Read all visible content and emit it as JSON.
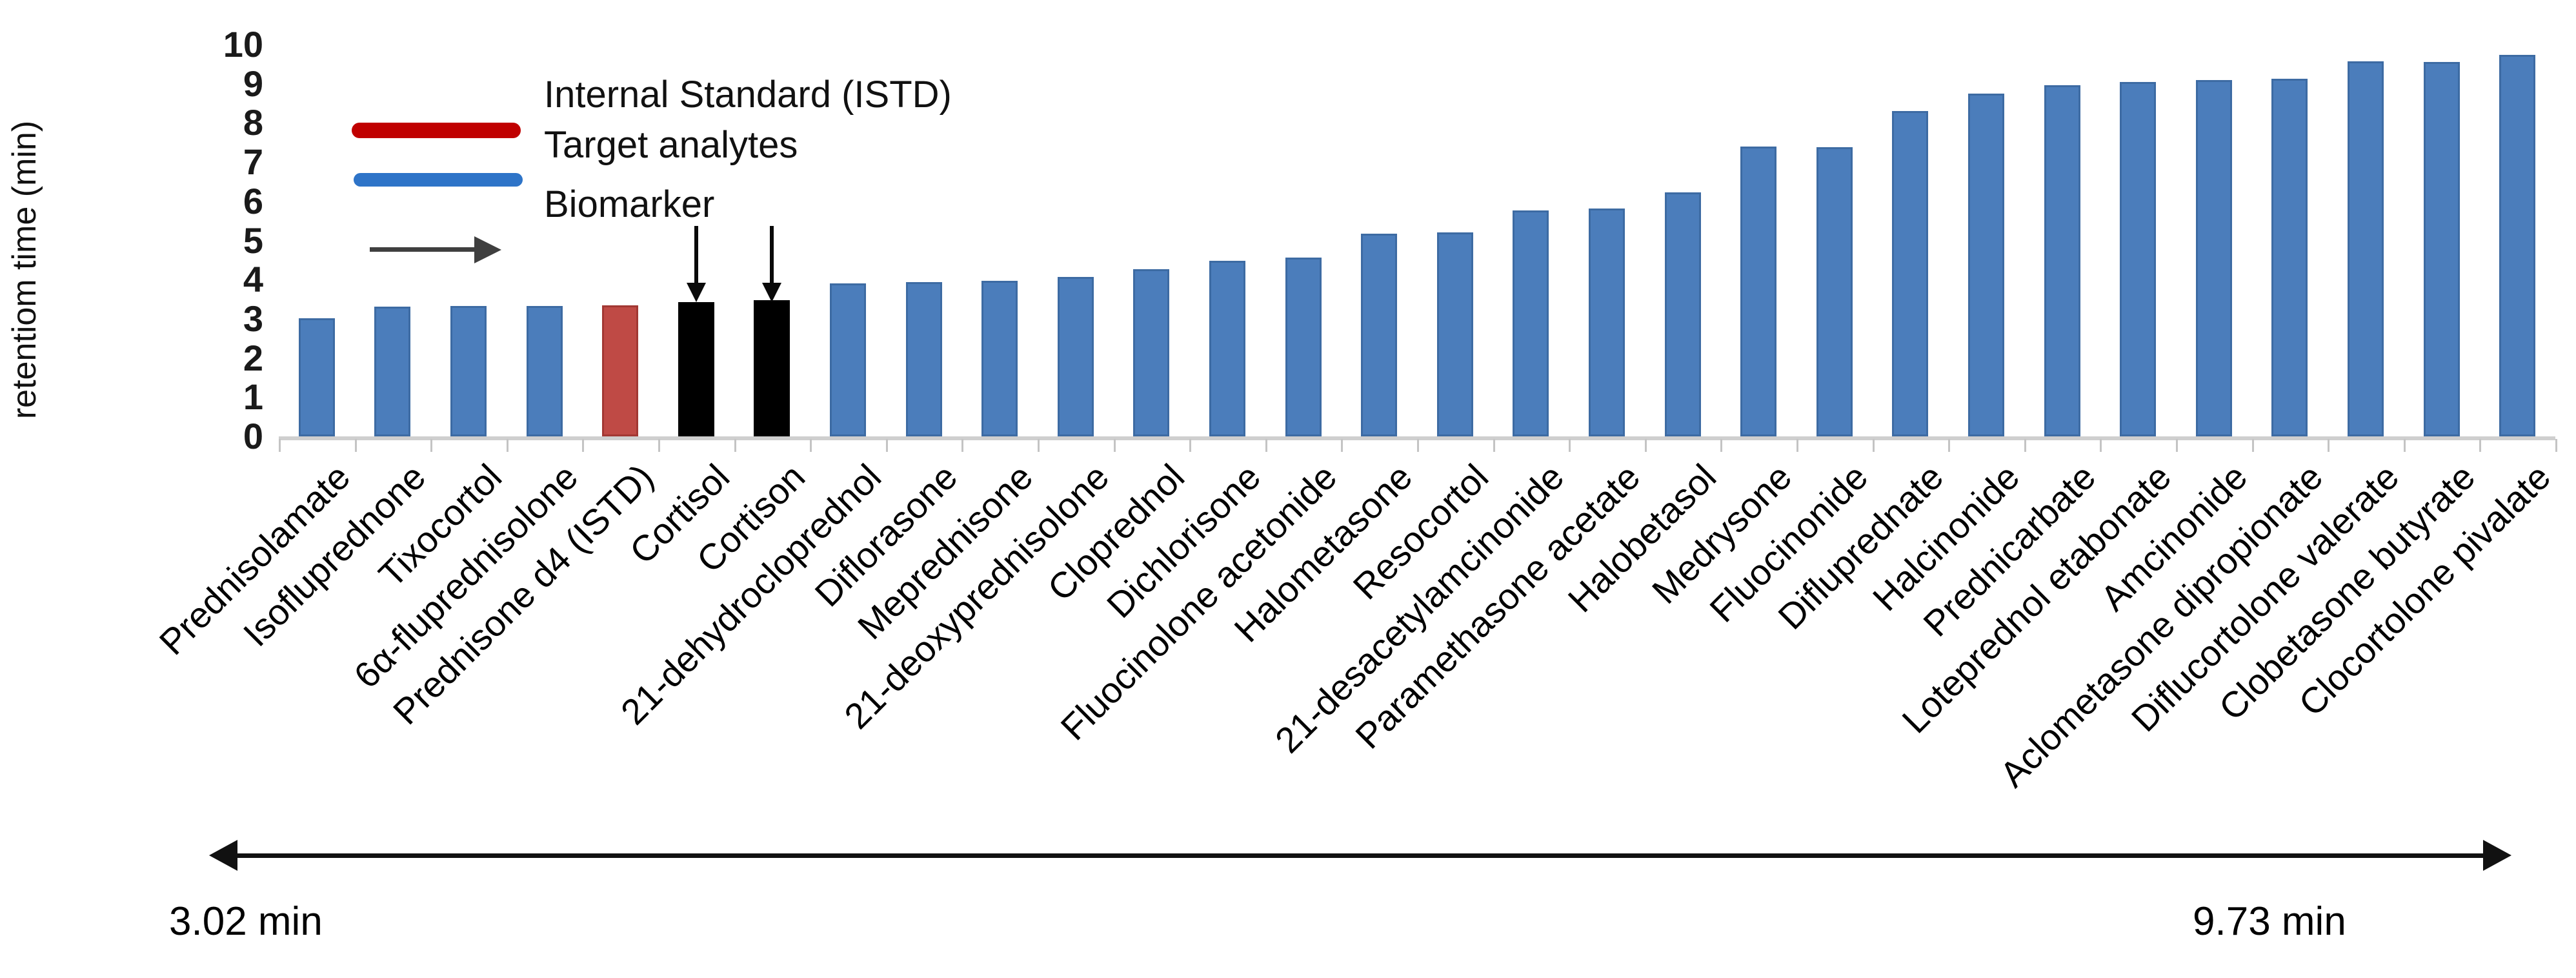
{
  "figure": {
    "y_axis_title": "retentiom time (min)",
    "legend": {
      "istd_label": "Internal Standard (ISTD)",
      "target_label": "Target analytes",
      "biomarker_label": "Biomarker",
      "istd_color": "#C00000",
      "target_color": "#2E74C8",
      "arrow_color": "#3F3F3F"
    },
    "range_annotation": {
      "start_label": "3.02 min",
      "end_label": "9.73 min"
    }
  },
  "chart_data": {
    "type": "bar",
    "title": "",
    "xlabel": "",
    "ylabel": "retentiom time (min)",
    "ylim": [
      0,
      10
    ],
    "yticks": [
      0,
      1,
      2,
      3,
      4,
      5,
      6,
      7,
      8,
      9,
      10
    ],
    "grid": false,
    "legend_position": "top-left",
    "categories": [
      "Prednisolamate",
      "Isofluprednone",
      "Tixocortol",
      "6α-fluprednisolone",
      "Prednisone d4 (ISTD)",
      "Cortisol",
      "Cortison",
      "21-dehydrocloprednol",
      "Diflorasone",
      "Meprednisone",
      "21-deoxyprednisolone",
      "Cloprednol",
      "Dichlorisone",
      "Fluocinolone acetonide",
      "Halometasone",
      "Resocortol",
      "21-desacetylamcinonide",
      "Paramethasone acetate",
      "Halobetasol",
      "Medrysone",
      "Fluocinonide",
      "Difluprednate",
      "Halcinonide",
      "Prednicarbate",
      "Loteprednol etabonate",
      "Amcinonide",
      "Aclometasone dipropionate",
      "Diflucortolone valerate",
      "Clobetasone butyrate",
      "Clocortolone pivalate"
    ],
    "values": [
      3.02,
      3.31,
      3.32,
      3.33,
      3.34,
      3.42,
      3.47,
      3.9,
      3.93,
      3.97,
      4.07,
      4.26,
      4.48,
      4.56,
      5.17,
      5.21,
      5.77,
      5.82,
      6.22,
      7.4,
      7.38,
      8.31,
      8.74,
      8.96,
      9.04,
      9.1,
      9.12,
      9.57,
      9.55,
      9.73
    ],
    "roles": [
      "target",
      "target",
      "target",
      "target",
      "istd",
      "biomarker",
      "biomarker",
      "target",
      "target",
      "target",
      "target",
      "target",
      "target",
      "target",
      "target",
      "target",
      "target",
      "target",
      "target",
      "target",
      "target",
      "target",
      "target",
      "target",
      "target",
      "target",
      "target",
      "target",
      "target",
      "target"
    ],
    "bar_colors": {
      "target": "#4B7DBB",
      "istd": "#BF4A45",
      "biomarker": "#000000"
    },
    "annotations": {
      "down_arrows_on": [
        "Cortisol",
        "Cortison"
      ],
      "range_min": "3.02 min",
      "range_max": "9.73 min"
    }
  }
}
